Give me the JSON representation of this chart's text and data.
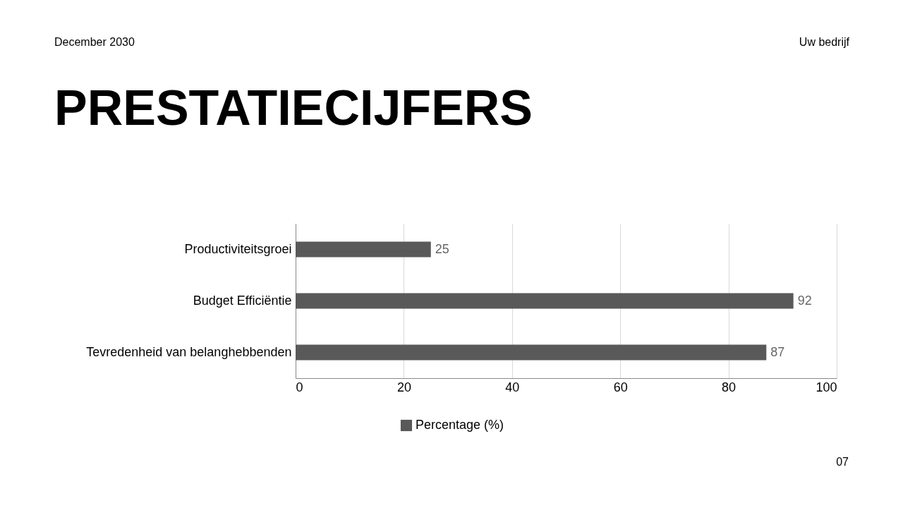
{
  "chart_data": {
    "type": "bar",
    "orientation": "horizontal",
    "title": "PRESTATIECIJFERS",
    "categories": [
      "Productiviteitsgroei",
      "Budget Efficiëntie",
      "Tevredenheid van belanghebbenden"
    ],
    "series": [
      {
        "name": "Percentage (%)",
        "color": "#595959",
        "values": [
          25,
          92,
          87
        ]
      }
    ],
    "xlim": [
      0,
      100
    ],
    "xticks": [
      0,
      20,
      40,
      60,
      80,
      100
    ],
    "grid": "x",
    "legend": "bottom",
    "data_labels": true,
    "annotations": [
      "December 2030",
      "Uw bedrijf",
      "07"
    ]
  }
}
